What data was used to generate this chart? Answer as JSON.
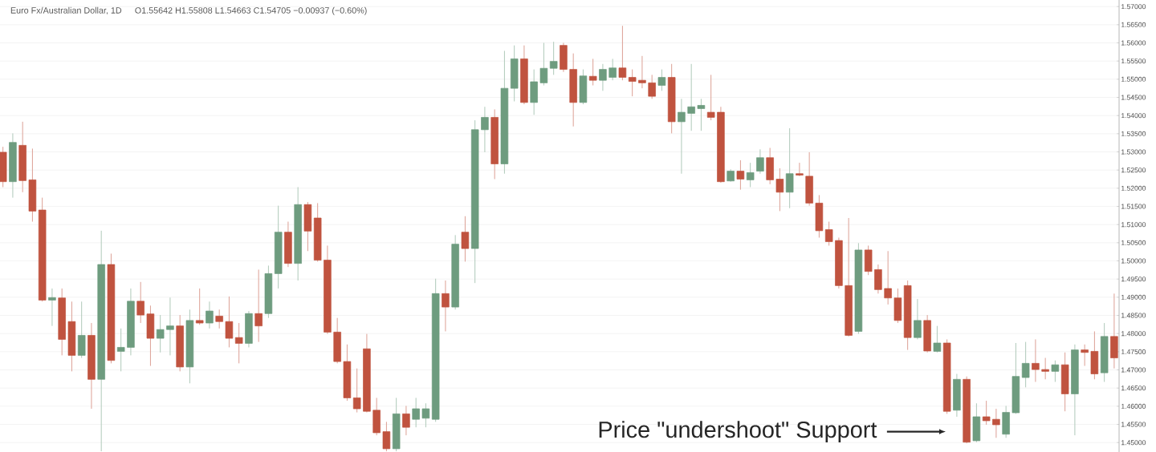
{
  "chart_data": {
    "type": "candlestick",
    "title": "Euro Fx/Australian Dollar, 1D",
    "subtitle": "O1.55642 H1.55808 L1.54663 C1.54705 −0.00937 (−0.60%)",
    "annotations": [
      "Price \"undershoot\" Support"
    ],
    "categories": [
      null,
      null,
      null,
      null,
      null,
      null,
      null,
      null,
      null,
      null,
      null,
      null,
      null,
      null,
      null,
      null,
      null,
      null,
      null,
      null,
      null,
      null,
      null,
      null,
      null,
      null,
      null,
      null,
      null,
      null,
      null,
      null,
      null,
      null,
      null,
      null,
      null,
      null,
      null,
      null,
      null,
      null,
      null,
      null,
      null,
      null,
      null,
      null,
      null,
      null,
      null,
      null,
      null,
      null,
      null,
      null,
      null,
      null,
      null,
      null,
      null,
      null,
      null,
      null,
      null,
      null,
      null,
      null,
      null,
      null,
      null,
      null,
      null,
      null,
      null,
      null,
      null,
      null,
      null,
      null,
      null,
      null,
      null,
      null,
      null,
      null,
      null,
      null,
      null,
      null,
      null,
      null,
      null,
      null,
      null,
      null,
      null,
      null,
      null,
      null,
      null,
      null,
      null,
      null,
      null,
      null,
      null,
      null,
      null,
      null,
      null,
      null,
      null,
      null
    ],
    "ohlc": [
      [
        1.5299,
        1.5314,
        1.5203,
        1.5218
      ],
      [
        1.5218,
        1.5351,
        1.5174,
        1.5326
      ],
      [
        1.5318,
        1.5383,
        1.5189,
        1.5221
      ],
      [
        1.5223,
        1.5309,
        1.5108,
        1.5137
      ],
      [
        1.514,
        1.5174,
        1.4888,
        1.4892
      ],
      [
        1.4892,
        1.4924,
        1.4821,
        1.4899
      ],
      [
        1.4898,
        1.4924,
        1.474,
        1.4784
      ],
      [
        1.4833,
        1.4888,
        1.4696,
        1.474
      ],
      [
        1.474,
        1.4888,
        1.4733,
        1.4795
      ],
      [
        1.4795,
        1.4829,
        1.4593,
        1.4674
      ],
      [
        1.4674,
        1.5083,
        1.4476,
        1.499
      ],
      [
        1.499,
        1.502,
        1.4718,
        1.4726
      ],
      [
        1.4751,
        1.4814,
        1.4696,
        1.4762
      ],
      [
        1.4762,
        1.4924,
        1.474,
        1.4889
      ],
      [
        1.4889,
        1.4942,
        1.4829,
        1.4851
      ],
      [
        1.4854,
        1.4877,
        1.4711,
        1.4787
      ],
      [
        1.4787,
        1.4851,
        1.4748,
        1.4811
      ],
      [
        1.4811,
        1.4899,
        1.474,
        1.4821
      ],
      [
        1.4821,
        1.4851,
        1.4696,
        1.4708
      ],
      [
        1.4708,
        1.4866,
        1.4663,
        1.4836
      ],
      [
        1.4836,
        1.4924,
        1.4824,
        1.4829
      ],
      [
        1.4829,
        1.4888,
        1.4814,
        1.4862
      ],
      [
        1.4848,
        1.4866,
        1.4814,
        1.4833
      ],
      [
        1.4833,
        1.4902,
        1.4762,
        1.4787
      ],
      [
        1.4789,
        1.4829,
        1.4718,
        1.4773
      ],
      [
        1.4773,
        1.4862,
        1.4762,
        1.4855
      ],
      [
        1.4855,
        1.4976,
        1.4777,
        1.4821
      ],
      [
        1.4855,
        1.4987,
        1.4843,
        1.4965
      ],
      [
        1.4965,
        1.5152,
        1.4924,
        1.5079
      ],
      [
        1.5079,
        1.5108,
        1.4983,
        1.4993
      ],
      [
        1.4993,
        1.5203,
        1.4946,
        1.5155
      ],
      [
        1.5155,
        1.5162,
        1.5027,
        1.5082
      ],
      [
        1.5118,
        1.5159,
        1.4998,
        1.5002
      ],
      [
        1.5002,
        1.5042,
        1.4799,
        1.4804
      ],
      [
        1.4804,
        1.4843,
        1.4718,
        1.4723
      ],
      [
        1.4723,
        1.477,
        1.4615,
        1.4623
      ],
      [
        1.4623,
        1.4704,
        1.4583,
        1.4593
      ],
      [
        1.4758,
        1.4799,
        1.4583,
        1.4586
      ],
      [
        1.4589,
        1.4623,
        1.452,
        1.4527
      ],
      [
        1.453,
        1.4557,
        1.4476,
        1.4483
      ],
      [
        1.4483,
        1.4623,
        1.4476,
        1.4579
      ],
      [
        1.4579,
        1.4601,
        1.452,
        1.4542
      ],
      [
        1.4564,
        1.4623,
        1.4542,
        1.4593
      ],
      [
        1.4567,
        1.4608,
        1.4542,
        1.4593
      ],
      [
        1.4564,
        1.4951,
        1.4557,
        1.491
      ],
      [
        1.491,
        1.4946,
        1.4806,
        1.4873
      ],
      [
        1.4873,
        1.5071,
        1.4866,
        1.5046
      ],
      [
        1.5079,
        1.5123,
        1.4998,
        1.5034
      ],
      [
        1.5034,
        1.5387,
        1.4939,
        1.5361
      ],
      [
        1.5361,
        1.5424,
        1.5299,
        1.5395
      ],
      [
        1.5395,
        1.5417,
        1.5225,
        1.5267
      ],
      [
        1.5267,
        1.5578,
        1.524,
        1.5475
      ],
      [
        1.5475,
        1.5593,
        1.5439,
        1.5556
      ],
      [
        1.5556,
        1.5593,
        1.5431,
        1.5436
      ],
      [
        1.5436,
        1.5527,
        1.5402,
        1.5493
      ],
      [
        1.549,
        1.56,
        1.5483,
        1.553
      ],
      [
        1.553,
        1.5603,
        1.5512,
        1.5549
      ],
      [
        1.5593,
        1.56,
        1.552,
        1.5527
      ],
      [
        1.5527,
        1.5571,
        1.537,
        1.5436
      ],
      [
        1.5436,
        1.5527,
        1.5431,
        1.5509
      ],
      [
        1.5508,
        1.5556,
        1.5483,
        1.5497
      ],
      [
        1.5497,
        1.5542,
        1.5468,
        1.5527
      ],
      [
        1.5505,
        1.5556,
        1.5497,
        1.5531
      ],
      [
        1.5531,
        1.5647,
        1.5497,
        1.5505
      ],
      [
        1.5505,
        1.5527,
        1.5453,
        1.5494
      ],
      [
        1.5497,
        1.5564,
        1.5475,
        1.549
      ],
      [
        1.549,
        1.5512,
        1.5446,
        1.5453
      ],
      [
        1.5483,
        1.5527,
        1.5468,
        1.5505
      ],
      [
        1.5505,
        1.5542,
        1.5351,
        1.5383
      ],
      [
        1.5383,
        1.5446,
        1.524,
        1.5409
      ],
      [
        1.5406,
        1.5542,
        1.5358,
        1.5424
      ],
      [
        1.5419,
        1.5446,
        1.5358,
        1.5428
      ],
      [
        1.5409,
        1.5512,
        1.5387,
        1.5395
      ],
      [
        1.5409,
        1.5424,
        1.5215,
        1.5218
      ],
      [
        1.522,
        1.5252,
        1.5218,
        1.5247
      ],
      [
        1.5247,
        1.5277,
        1.5196,
        1.5225
      ],
      [
        1.5223,
        1.527,
        1.5203,
        1.5243
      ],
      [
        1.5247,
        1.5307,
        1.524,
        1.5284
      ],
      [
        1.5284,
        1.5311,
        1.5211,
        1.5223
      ],
      [
        1.5225,
        1.5255,
        1.5137,
        1.5189
      ],
      [
        1.5189,
        1.5365,
        1.5145,
        1.524
      ],
      [
        1.524,
        1.527,
        1.5233,
        1.5236
      ],
      [
        1.5233,
        1.5299,
        1.5152,
        1.5159
      ],
      [
        1.5159,
        1.5181,
        1.5064,
        1.5083
      ],
      [
        1.5086,
        1.5108,
        1.5042,
        1.5053
      ],
      [
        1.5056,
        1.5064,
        1.4924,
        1.4932
      ],
      [
        1.4932,
        1.5118,
        1.4792,
        1.4795
      ],
      [
        1.4806,
        1.5049,
        1.4799,
        1.503
      ],
      [
        1.503,
        1.5042,
        1.4961,
        1.4971
      ],
      [
        1.4976,
        1.499,
        1.491,
        1.4921
      ],
      [
        1.4924,
        1.5027,
        1.488,
        1.4898
      ],
      [
        1.4898,
        1.4924,
        1.4829,
        1.4836
      ],
      [
        1.4932,
        1.4946,
        1.4755,
        1.4789
      ],
      [
        1.4789,
        1.4895,
        1.4784,
        1.4836
      ],
      [
        1.4836,
        1.4851,
        1.4748,
        1.4752
      ],
      [
        1.4751,
        1.4821,
        1.4748,
        1.4774
      ],
      [
        1.4774,
        1.4784,
        1.4579,
        1.4586
      ],
      [
        1.4589,
        1.4689,
        1.4571,
        1.4674
      ],
      [
        1.4674,
        1.4682,
        1.4498,
        1.4501
      ],
      [
        1.4505,
        1.4608,
        1.4501,
        1.4571
      ],
      [
        1.4571,
        1.4615,
        1.4549,
        1.456
      ],
      [
        1.4564,
        1.4593,
        1.4513,
        1.4549
      ],
      [
        1.4523,
        1.4601,
        1.4513,
        1.4583
      ],
      [
        1.4582,
        1.4774,
        1.4579,
        1.4682
      ],
      [
        1.4679,
        1.4777,
        1.4652,
        1.4718
      ],
      [
        1.4718,
        1.4784,
        1.4667,
        1.4701
      ],
      [
        1.4701,
        1.4733,
        1.4674,
        1.4696
      ],
      [
        1.4696,
        1.4726,
        1.4667,
        1.4714
      ],
      [
        1.4714,
        1.4748,
        1.4586,
        1.4634
      ],
      [
        1.4634,
        1.477,
        1.452,
        1.4755
      ],
      [
        1.4755,
        1.477,
        1.4711,
        1.4748
      ],
      [
        1.4751,
        1.4806,
        1.4674,
        1.4689
      ],
      [
        1.4692,
        1.4829,
        1.4667,
        1.4792
      ],
      [
        1.4792,
        1.491,
        1.4704,
        1.4733
      ]
    ],
    "colors": [
      "#c0533f",
      "#6e9c7f",
      "#c0533f",
      "#c0533f",
      "#c0533f",
      "#6e9c7f",
      "#c0533f",
      "#c0533f",
      "#6e9c7f",
      "#c0533f",
      "#6e9c7f",
      "#c0533f",
      "#6e9c7f",
      "#6e9c7f",
      "#c0533f",
      "#c0533f",
      "#6e9c7f",
      "#6e9c7f",
      "#c0533f",
      "#6e9c7f",
      "#c0533f",
      "#6e9c7f",
      "#c0533f",
      "#c0533f",
      "#c0533f",
      "#6e9c7f",
      "#c0533f",
      "#6e9c7f",
      "#6e9c7f",
      "#c0533f",
      "#6e9c7f",
      "#c0533f",
      "#c0533f",
      "#c0533f",
      "#c0533f",
      "#c0533f",
      "#c0533f",
      "#c0533f",
      "#c0533f",
      "#c0533f",
      "#6e9c7f",
      "#c0533f",
      "#6e9c7f",
      "#6e9c7f",
      "#6e9c7f",
      "#c0533f",
      "#6e9c7f",
      "#c0533f",
      "#6e9c7f",
      "#6e9c7f",
      "#c0533f",
      "#6e9c7f",
      "#6e9c7f",
      "#c0533f",
      "#6e9c7f",
      "#6e9c7f",
      "#6e9c7f",
      "#c0533f",
      "#c0533f",
      "#6e9c7f",
      "#c0533f",
      "#6e9c7f",
      "#6e9c7f",
      "#c0533f",
      "#c0533f",
      "#c0533f",
      "#c0533f",
      "#6e9c7f",
      "#c0533f",
      "#6e9c7f",
      "#6e9c7f",
      "#6e9c7f",
      "#c0533f",
      "#c0533f",
      "#6e9c7f",
      "#c0533f",
      "#6e9c7f",
      "#6e9c7f",
      "#c0533f",
      "#c0533f",
      "#6e9c7f",
      "#c0533f",
      "#c0533f",
      "#c0533f",
      "#c0533f",
      "#c0533f",
      "#c0533f",
      "#6e9c7f",
      "#c0533f",
      "#c0533f",
      "#c0533f",
      "#c0533f",
      "#c0533f",
      "#6e9c7f",
      "#c0533f",
      "#6e9c7f",
      "#c0533f",
      "#6e9c7f",
      "#c0533f",
      "#6e9c7f",
      "#c0533f",
      "#c0533f",
      "#6e9c7f",
      "#6e9c7f",
      "#6e9c7f",
      "#c0533f",
      "#c0533f",
      "#6e9c7f",
      "#c0533f",
      "#6e9c7f",
      "#c0533f",
      "#c0533f",
      "#6e9c7f",
      "#c0533f"
    ],
    "ylim": [
      1.4474,
      1.5718
    ],
    "yticks": [
      {
        "value": 1.45,
        "label": "1.45000"
      },
      {
        "value": 1.455,
        "label": "1.45500"
      },
      {
        "value": 1.46,
        "label": "1.46000"
      },
      {
        "value": 1.465,
        "label": "1.46500"
      },
      {
        "value": 1.47,
        "label": "1.47000"
      },
      {
        "value": 1.475,
        "label": "1.47500"
      },
      {
        "value": 1.48,
        "label": "1.48000"
      },
      {
        "value": 1.485,
        "label": "1.48500"
      },
      {
        "value": 1.49,
        "label": "1.49000"
      },
      {
        "value": 1.495,
        "label": "1.49500"
      },
      {
        "value": 1.5,
        "label": "1.50000"
      },
      {
        "value": 1.505,
        "label": "1.50500"
      },
      {
        "value": 1.51,
        "label": "1.51000"
      },
      {
        "value": 1.515,
        "label": "1.51500"
      },
      {
        "value": 1.52,
        "label": "1.52000"
      },
      {
        "value": 1.525,
        "label": "1.52500"
      },
      {
        "value": 1.53,
        "label": "1.53000"
      },
      {
        "value": 1.535,
        "label": "1.53500"
      },
      {
        "value": 1.54,
        "label": "1.54000"
      },
      {
        "value": 1.545,
        "label": "1.54500"
      },
      {
        "value": 1.55,
        "label": "1.55000"
      },
      {
        "value": 1.555,
        "label": "1.55500"
      },
      {
        "value": 1.56,
        "label": "1.56000"
      },
      {
        "value": 1.565,
        "label": "1.56500"
      },
      {
        "value": 1.57,
        "label": "1.57000"
      }
    ],
    "grid": "y"
  }
}
